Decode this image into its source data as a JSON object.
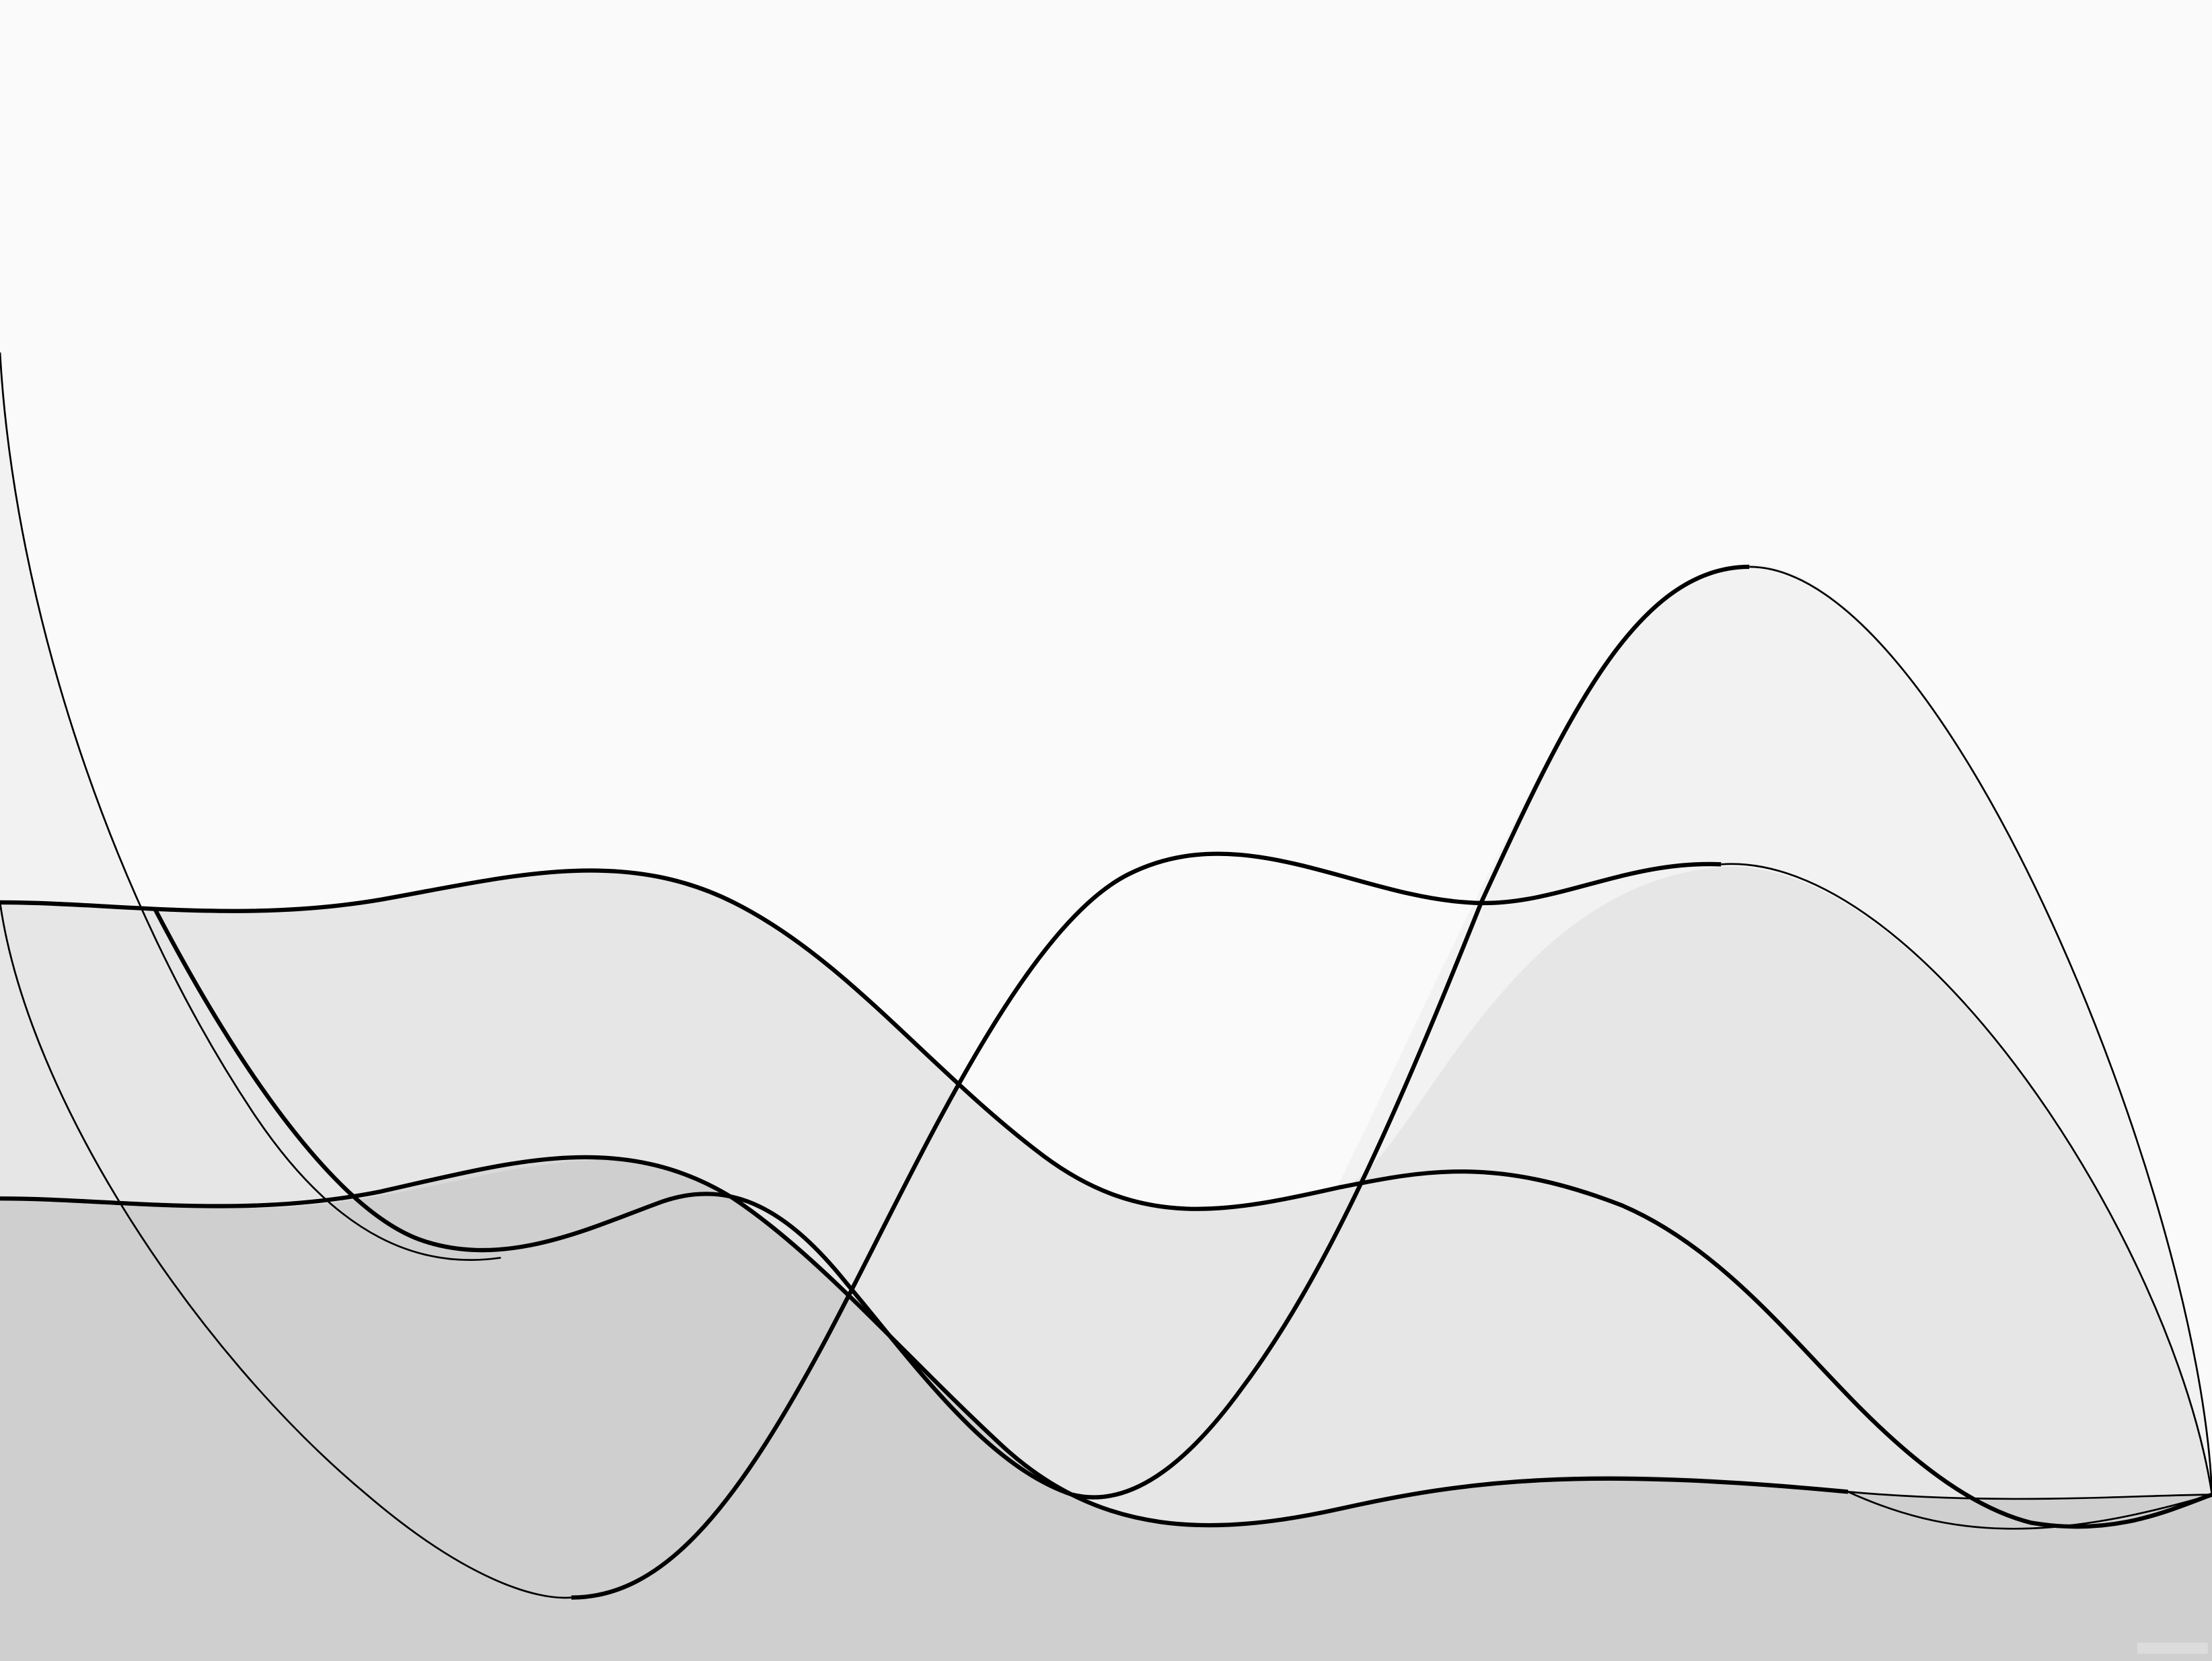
{
  "artwork": {
    "description_free": true,
    "palette": {
      "background": "#fafafa",
      "band_light": "#f2f2f2",
      "band_mid": "#e6e6e6",
      "band_darker": "#d9d9d9",
      "band_darkest": "#cfcfcf",
      "stroke": "#000000"
    }
  }
}
